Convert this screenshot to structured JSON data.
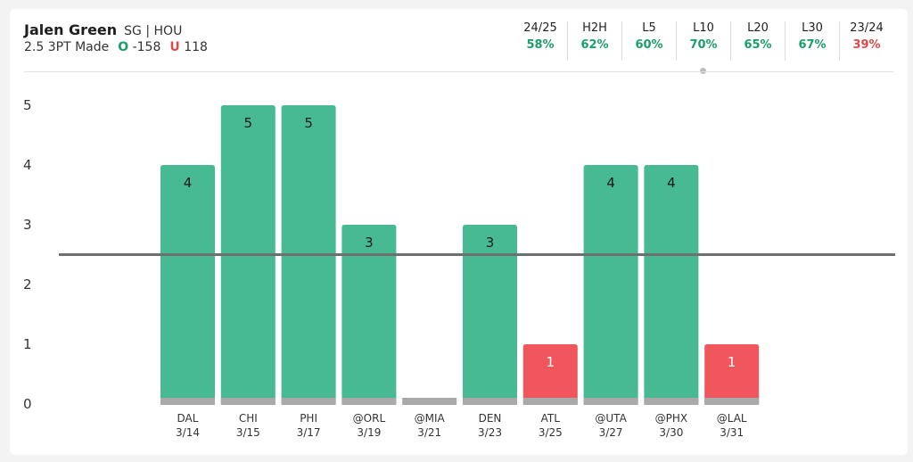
{
  "player": {
    "name": "Jalen Green",
    "pos_team": "SG | HOU"
  },
  "prop": {
    "label": "2.5 3PT Made",
    "over_prefix": "O",
    "over_odds": "-158",
    "under_prefix": "U",
    "under_odds": "118"
  },
  "stats": [
    {
      "label": "24/25",
      "value": "58%",
      "color": "#1a9e6a"
    },
    {
      "label": "H2H",
      "value": "62%",
      "color": "#1a9e6a"
    },
    {
      "label": "L5",
      "value": "60%",
      "color": "#1a9e6a"
    },
    {
      "label": "L10",
      "value": "70%",
      "color": "#1a9e6a",
      "selected": true
    },
    {
      "label": "L20",
      "value": "65%",
      "color": "#1a9e6a"
    },
    {
      "label": "L30",
      "value": "67%",
      "color": "#1a9e6a"
    },
    {
      "label": "23/24",
      "value": "39%",
      "color": "#e04848"
    }
  ],
  "colors": {
    "over": "#47b993",
    "under": "#f0575c",
    "base": "#a9a9a9",
    "line": "#6f6f6f"
  },
  "chart_data": {
    "type": "bar",
    "categories": [
      "DAL",
      "CHI",
      "PHI",
      "@ORL",
      "@MIA",
      "DEN",
      "ATL",
      "@UTA",
      "@PHX",
      "@LAL"
    ],
    "dates": [
      "3/14",
      "3/15",
      "3/17",
      "3/19",
      "3/21",
      "3/23",
      "3/25",
      "3/27",
      "3/30",
      "3/31"
    ],
    "values": [
      4,
      5,
      5,
      3,
      0,
      3,
      1,
      4,
      4,
      1
    ],
    "line": 2.5,
    "ylim": [
      0,
      5
    ],
    "yticks": [
      0,
      1,
      2,
      3,
      4,
      5
    ],
    "title": "",
    "xlabel": "",
    "ylabel": ""
  }
}
